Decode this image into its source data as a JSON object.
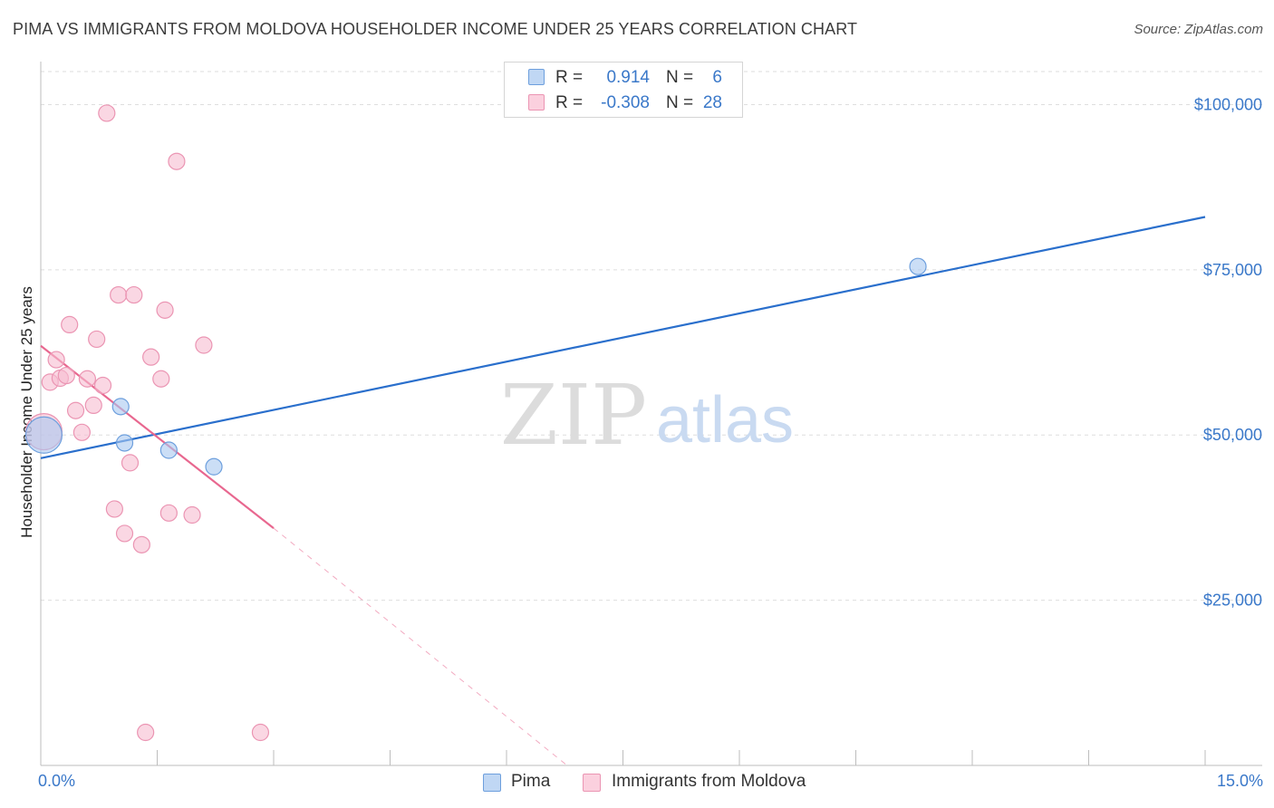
{
  "chart_data": {
    "type": "scatter",
    "title": "PIMA VS IMMIGRANTS FROM MOLDOVA HOUSEHOLDER INCOME UNDER 25 YEARS CORRELATION CHART",
    "source": "Source: ZipAtlas.com",
    "xlabel": "",
    "ylabel": "Householder Income Under 25 years",
    "xlim": [
      0,
      15
    ],
    "ylim": [
      0,
      105000
    ],
    "x_tick_labels": {
      "min": "0.0%",
      "max": "15.0%"
    },
    "y_ticks": [
      {
        "value": 25000,
        "label": "$25,000"
      },
      {
        "value": 50000,
        "label": "$50,000"
      },
      {
        "value": 75000,
        "label": "$75,000"
      },
      {
        "value": 100000,
        "label": "$100,000"
      }
    ],
    "watermark": {
      "zip": "ZIP",
      "atlas": "atlas"
    },
    "series": [
      {
        "name": "Pima",
        "color": "#a8c8f0",
        "stroke": "#6d9fdd",
        "line_color": "#2a6fcc",
        "stats": {
          "r_label": "R =",
          "r": "0.914",
          "n_label": "N =",
          "n": "6"
        },
        "points": [
          [
            0.04,
            50000
          ],
          [
            1.03,
            54300
          ],
          [
            1.08,
            48800
          ],
          [
            1.65,
            47700
          ],
          [
            2.23,
            45200
          ],
          [
            11.3,
            75500
          ]
        ],
        "trend": {
          "x0": 0.0,
          "y0": 46500,
          "x1": 15.0,
          "y1": 83000
        }
      },
      {
        "name": "Immigrants from Moldova",
        "color": "#f7bcd0",
        "stroke": "#eb95b3",
        "line_color": "#e8678f",
        "stats": {
          "r_label": "R =",
          "r": "-0.308",
          "n_label": "N =",
          "n": "28"
        },
        "points": [
          [
            0.04,
            50500
          ],
          [
            0.12,
            58000
          ],
          [
            0.2,
            61400
          ],
          [
            0.25,
            58600
          ],
          [
            0.33,
            59000
          ],
          [
            0.37,
            66700
          ],
          [
            0.45,
            53700
          ],
          [
            0.53,
            50400
          ],
          [
            0.6,
            58500
          ],
          [
            0.68,
            54500
          ],
          [
            0.72,
            64500
          ],
          [
            0.8,
            57500
          ],
          [
            0.85,
            98700
          ],
          [
            0.95,
            38800
          ],
          [
            1.0,
            71200
          ],
          [
            1.08,
            35100
          ],
          [
            1.15,
            45800
          ],
          [
            1.2,
            71200
          ],
          [
            1.3,
            33400
          ],
          [
            1.35,
            5000
          ],
          [
            1.42,
            61800
          ],
          [
            1.55,
            58500
          ],
          [
            1.6,
            68900
          ],
          [
            1.65,
            38200
          ],
          [
            1.75,
            91400
          ],
          [
            1.95,
            37900
          ],
          [
            2.1,
            63600
          ],
          [
            2.83,
            5000
          ]
        ],
        "trend": {
          "x0": 0.0,
          "y0": 63500,
          "x1": 3.0,
          "y1": 35900
        },
        "trend_extension": {
          "x0": 3.0,
          "y0": 35900,
          "x1": 6.78,
          "y1": 0
        }
      }
    ]
  }
}
